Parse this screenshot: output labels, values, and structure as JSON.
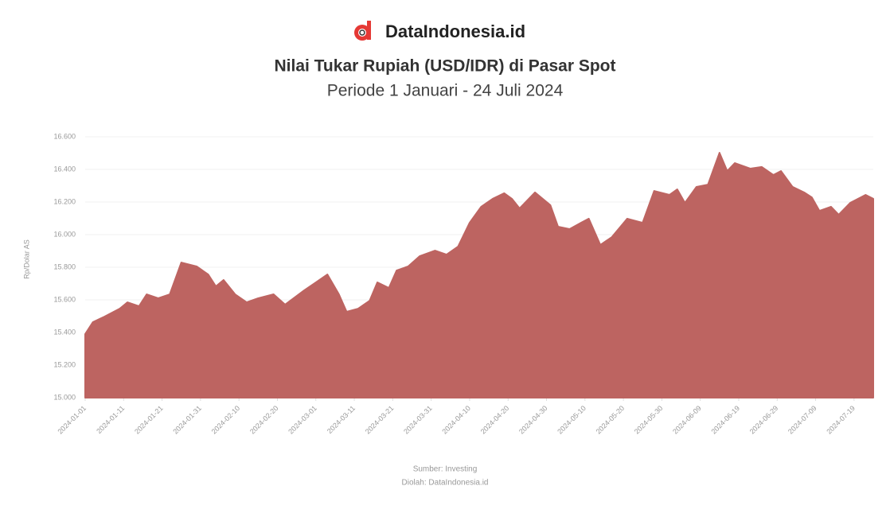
{
  "brand": "DataIndonesia.id",
  "chart_data": {
    "type": "area",
    "title": "Nilai Tukar Rupiah (USD/IDR) di Pasar Spot",
    "subtitle": "Periode 1 Januari - 24 Juli 2024",
    "y_label": "Rp/Dolar AS",
    "source": "Sumber: Investing",
    "note": "Diolah: DataIndonesia.id",
    "color": "#bd6461",
    "grid": true,
    "x": [
      "2024-01-01",
      "2024-01-03",
      "2024-01-06",
      "2024-01-10",
      "2024-01-12",
      "2024-01-15",
      "2024-01-17",
      "2024-01-20",
      "2024-01-23",
      "2024-01-26",
      "2024-01-30",
      "2024-02-02",
      "2024-02-04",
      "2024-02-06",
      "2024-02-09",
      "2024-02-12",
      "2024-02-15",
      "2024-02-19",
      "2024-02-22",
      "2024-02-27",
      "2024-03-01",
      "2024-03-04",
      "2024-03-07",
      "2024-03-09",
      "2024-03-12",
      "2024-03-15",
      "2024-03-17",
      "2024-03-20",
      "2024-03-22",
      "2024-03-25",
      "2024-03-28",
      "2024-04-01",
      "2024-04-04",
      "2024-04-07",
      "2024-04-10",
      "2024-04-13",
      "2024-04-16",
      "2024-04-19",
      "2024-04-21",
      "2024-04-23",
      "2024-04-27",
      "2024-05-01",
      "2024-05-03",
      "2024-05-06",
      "2024-05-09",
      "2024-05-11",
      "2024-05-14",
      "2024-05-17",
      "2024-05-21",
      "2024-05-25",
      "2024-05-28",
      "2024-06-01",
      "2024-06-03",
      "2024-06-05",
      "2024-06-08",
      "2024-06-11",
      "2024-06-14",
      "2024-06-16",
      "2024-06-18",
      "2024-06-22",
      "2024-06-25",
      "2024-06-28",
      "2024-06-30",
      "2024-07-03",
      "2024-07-06",
      "2024-07-08",
      "2024-07-10",
      "2024-07-13",
      "2024-07-15",
      "2024-07-18",
      "2024-07-22",
      "2024-07-24"
    ],
    "values": [
      15390,
      15463,
      15497,
      15546,
      15585,
      15561,
      15634,
      15610,
      15634,
      15829,
      15805,
      15756,
      15683,
      15722,
      15634,
      15585,
      15610,
      15634,
      15571,
      15659,
      15707,
      15756,
      15634,
      15527,
      15546,
      15595,
      15707,
      15673,
      15780,
      15805,
      15868,
      15902,
      15878,
      15927,
      16073,
      16171,
      16220,
      16254,
      16220,
      16161,
      16259,
      16181,
      16049,
      16034,
      16073,
      16098,
      15937,
      15985,
      16098,
      16073,
      16268,
      16244,
      16278,
      16195,
      16293,
      16307,
      16502,
      16390,
      16439,
      16405,
      16415,
      16366,
      16390,
      16293,
      16259,
      16229,
      16146,
      16171,
      16122,
      16195,
      16244,
      16220
    ],
    "xlim": [
      "2024-01-01",
      "2024-07-24"
    ],
    "xticks": [
      "2024-01-01",
      "2024-01-11",
      "2024-01-21",
      "2024-01-31",
      "2024-02-10",
      "2024-02-20",
      "2024-03-01",
      "2024-03-11",
      "2024-03-21",
      "2024-03-31",
      "2024-04-10",
      "2024-04-20",
      "2024-04-30",
      "2024-05-10",
      "2024-05-20",
      "2024-05-30",
      "2024-06-09",
      "2024-06-19",
      "2024-06-29",
      "2024-07-09",
      "2024-07-19"
    ],
    "ylim": [
      15000,
      16600
    ],
    "yticks": [
      {
        "value": 15000,
        "label": "15.000"
      },
      {
        "value": 15200,
        "label": "15.200"
      },
      {
        "value": 15400,
        "label": "15.400"
      },
      {
        "value": 15600,
        "label": "15.600"
      },
      {
        "value": 15800,
        "label": "15.800"
      },
      {
        "value": 16000,
        "label": "16.000"
      },
      {
        "value": 16200,
        "label": "16.200"
      },
      {
        "value": 16400,
        "label": "16.400"
      },
      {
        "value": 16600,
        "label": "16.600"
      }
    ]
  }
}
